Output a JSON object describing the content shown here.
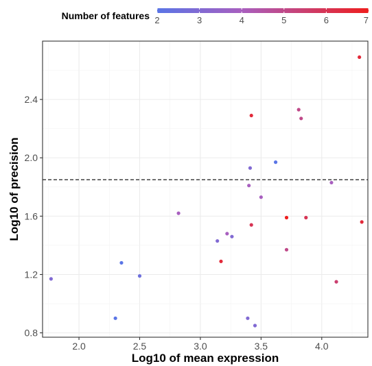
{
  "chart_data": {
    "type": "scatter",
    "xlabel": "Log10 of mean expression",
    "ylabel": "Log10 of precision",
    "xlim": [
      1.7,
      4.38
    ],
    "ylim": [
      0.77,
      2.8
    ],
    "x_ticks": [
      2.0,
      2.5,
      3.0,
      3.5,
      4.0
    ],
    "x_tick_labels": [
      "2.0",
      "2.5",
      "3.0",
      "3.5",
      "4.0"
    ],
    "y_ticks": [
      0.8,
      1.2,
      1.6,
      2.0,
      2.4
    ],
    "y_tick_labels": [
      "0.8",
      "1.2",
      "1.6",
      "2.0",
      "2.4"
    ],
    "hline": 1.85,
    "hline_style": "dashed",
    "grid": true,
    "legend": {
      "title": "Number of features",
      "position": "top",
      "type": "colorbar",
      "range": [
        2,
        7
      ],
      "ticks": [
        2,
        3,
        4,
        5,
        6,
        7
      ],
      "tick_labels": [
        "2",
        "3",
        "4",
        "5",
        "6",
        "7"
      ],
      "color_low": "#5a75e6",
      "color_mid": "#a85fbf",
      "color_high": "#ee1e1e"
    },
    "points": [
      {
        "x": 1.77,
        "y": 1.17,
        "features": 3
      },
      {
        "x": 2.3,
        "y": 0.9,
        "features": 2
      },
      {
        "x": 2.35,
        "y": 1.28,
        "features": 2
      },
      {
        "x": 2.5,
        "y": 1.19,
        "features": 2.5
      },
      {
        "x": 2.82,
        "y": 1.62,
        "features": 4
      },
      {
        "x": 3.14,
        "y": 1.43,
        "features": 3
      },
      {
        "x": 3.17,
        "y": 1.29,
        "features": 6.5
      },
      {
        "x": 3.22,
        "y": 1.48,
        "features": 4
      },
      {
        "x": 3.26,
        "y": 1.46,
        "features": 3
      },
      {
        "x": 3.39,
        "y": 0.9,
        "features": 3
      },
      {
        "x": 3.4,
        "y": 1.81,
        "features": 4
      },
      {
        "x": 3.41,
        "y": 1.93,
        "features": 3
      },
      {
        "x": 3.42,
        "y": 1.54,
        "features": 6
      },
      {
        "x": 3.42,
        "y": 2.29,
        "features": 6.5
      },
      {
        "x": 3.45,
        "y": 0.85,
        "features": 3
      },
      {
        "x": 3.5,
        "y": 1.73,
        "features": 4
      },
      {
        "x": 3.62,
        "y": 1.97,
        "features": 2
      },
      {
        "x": 3.71,
        "y": 1.37,
        "features": 5
      },
      {
        "x": 3.71,
        "y": 1.59,
        "features": 7
      },
      {
        "x": 3.81,
        "y": 2.33,
        "features": 5
      },
      {
        "x": 3.83,
        "y": 2.27,
        "features": 5
      },
      {
        "x": 3.87,
        "y": 1.59,
        "features": 6
      },
      {
        "x": 4.08,
        "y": 1.83,
        "features": 4
      },
      {
        "x": 4.12,
        "y": 1.15,
        "features": 5.5
      },
      {
        "x": 4.31,
        "y": 2.69,
        "features": 6.5
      },
      {
        "x": 4.33,
        "y": 1.56,
        "features": 6.5
      }
    ]
  }
}
